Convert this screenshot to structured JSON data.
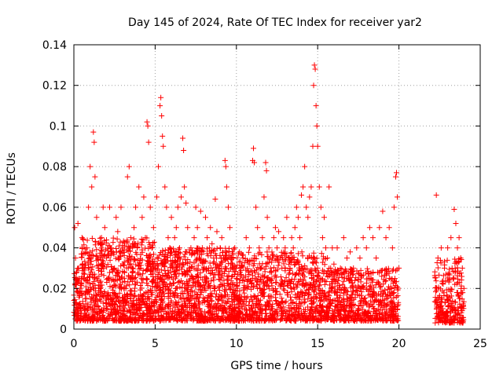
{
  "chart_data": {
    "type": "scatter",
    "title": "Day 145 of 2024, Rate Of TEC Index for receiver yar2",
    "xlabel": "GPS time / hours",
    "ylabel": "ROTI / TECUs",
    "xlim": [
      0,
      25
    ],
    "ylim": [
      0,
      0.14
    ],
    "xticks": [
      0,
      5,
      10,
      15,
      20,
      25
    ],
    "yticks": [
      0,
      0.02,
      0.04,
      0.06,
      0.08,
      0.1,
      0.12,
      0.14
    ],
    "xtick_labels": [
      "0",
      "5",
      "10",
      "15",
      "20",
      "25"
    ],
    "ytick_labels": [
      "0",
      "0.02",
      "0.04",
      "0.06",
      "0.08",
      "0.1",
      "0.12",
      "0.14"
    ],
    "grid": true,
    "marker": "+",
    "color": "#ff0000",
    "series": [
      {
        "name": "",
        "points": [
          [
            0.05,
            0.05
          ],
          [
            0.1,
            0.035
          ],
          [
            0.15,
            0.02
          ],
          [
            0.2,
            0.01
          ],
          [
            0.25,
            0.052
          ],
          [
            0.3,
            0.03
          ],
          [
            0.5,
            0.045
          ],
          [
            0.6,
            0.025
          ],
          [
            0.7,
            0.015
          ],
          [
            0.8,
            0.04
          ],
          [
            0.9,
            0.06
          ],
          [
            1.0,
            0.08
          ],
          [
            1.1,
            0.07
          ],
          [
            1.2,
            0.097
          ],
          [
            1.25,
            0.092
          ],
          [
            1.3,
            0.075
          ],
          [
            1.4,
            0.055
          ],
          [
            1.5,
            0.03
          ],
          [
            1.6,
            0.02
          ],
          [
            1.7,
            0.045
          ],
          [
            1.8,
            0.06
          ],
          [
            1.9,
            0.05
          ],
          [
            2.0,
            0.035
          ],
          [
            2.1,
            0.025
          ],
          [
            2.2,
            0.06
          ],
          [
            2.3,
            0.04
          ],
          [
            2.4,
            0.018
          ],
          [
            2.5,
            0.03
          ],
          [
            2.6,
            0.055
          ],
          [
            2.7,
            0.048
          ],
          [
            2.8,
            0.035
          ],
          [
            2.9,
            0.06
          ],
          [
            3.0,
            0.04
          ],
          [
            3.1,
            0.025
          ],
          [
            3.2,
            0.02
          ],
          [
            3.3,
            0.075
          ],
          [
            3.4,
            0.08
          ],
          [
            3.5,
            0.045
          ],
          [
            3.6,
            0.03
          ],
          [
            3.7,
            0.05
          ],
          [
            3.8,
            0.06
          ],
          [
            3.9,
            0.04
          ],
          [
            4.0,
            0.07
          ],
          [
            4.1,
            0.03
          ],
          [
            4.2,
            0.055
          ],
          [
            4.3,
            0.065
          ],
          [
            4.4,
            0.045
          ],
          [
            4.5,
            0.102
          ],
          [
            4.55,
            0.1
          ],
          [
            4.6,
            0.092
          ],
          [
            4.7,
            0.06
          ],
          [
            4.8,
            0.04
          ],
          [
            4.9,
            0.05
          ],
          [
            5.0,
            0.03
          ],
          [
            5.1,
            0.065
          ],
          [
            5.2,
            0.08
          ],
          [
            5.3,
            0.11
          ],
          [
            5.35,
            0.114
          ],
          [
            5.4,
            0.105
          ],
          [
            5.45,
            0.095
          ],
          [
            5.5,
            0.09
          ],
          [
            5.6,
            0.07
          ],
          [
            5.7,
            0.06
          ],
          [
            5.8,
            0.045
          ],
          [
            5.9,
            0.04
          ],
          [
            6.0,
            0.055
          ],
          [
            6.1,
            0.03
          ],
          [
            6.2,
            0.045
          ],
          [
            6.3,
            0.05
          ],
          [
            6.4,
            0.06
          ],
          [
            6.5,
            0.04
          ],
          [
            6.6,
            0.065
          ],
          [
            6.7,
            0.094
          ],
          [
            6.75,
            0.088
          ],
          [
            6.8,
            0.07
          ],
          [
            6.9,
            0.062
          ],
          [
            7.0,
            0.05
          ],
          [
            7.1,
            0.03
          ],
          [
            7.2,
            0.04
          ],
          [
            7.3,
            0.025
          ],
          [
            7.4,
            0.045
          ],
          [
            7.5,
            0.06
          ],
          [
            7.6,
            0.05
          ],
          [
            7.7,
            0.035
          ],
          [
            7.8,
            0.058
          ],
          [
            7.9,
            0.04
          ],
          [
            8.0,
            0.03
          ],
          [
            8.1,
            0.055
          ],
          [
            8.2,
            0.045
          ],
          [
            8.3,
            0.03
          ],
          [
            8.4,
            0.05
          ],
          [
            8.5,
            0.042
          ],
          [
            8.6,
            0.035
          ],
          [
            8.7,
            0.064
          ],
          [
            8.8,
            0.048
          ],
          [
            8.9,
            0.03
          ],
          [
            9.0,
            0.04
          ],
          [
            9.1,
            0.045
          ],
          [
            9.2,
            0.035
          ],
          [
            9.3,
            0.083
          ],
          [
            9.35,
            0.08
          ],
          [
            9.4,
            0.07
          ],
          [
            9.5,
            0.06
          ],
          [
            9.6,
            0.05
          ],
          [
            9.7,
            0.035
          ],
          [
            9.8,
            0.03
          ],
          [
            9.9,
            0.04
          ],
          [
            10.0,
            0.025
          ],
          [
            10.2,
            0.03
          ],
          [
            10.4,
            0.035
          ],
          [
            10.6,
            0.045
          ],
          [
            10.8,
            0.04
          ],
          [
            11.0,
            0.083
          ],
          [
            11.05,
            0.089
          ],
          [
            11.1,
            0.082
          ],
          [
            11.2,
            0.06
          ],
          [
            11.3,
            0.05
          ],
          [
            11.4,
            0.04
          ],
          [
            11.5,
            0.03
          ],
          [
            11.6,
            0.045
          ],
          [
            11.7,
            0.065
          ],
          [
            11.8,
            0.082
          ],
          [
            11.85,
            0.078
          ],
          [
            11.9,
            0.055
          ],
          [
            12.0,
            0.04
          ],
          [
            12.1,
            0.03
          ],
          [
            12.2,
            0.035
          ],
          [
            12.3,
            0.045
          ],
          [
            12.4,
            0.05
          ],
          [
            12.5,
            0.04
          ],
          [
            12.6,
            0.048
          ],
          [
            12.7,
            0.035
          ],
          [
            12.8,
            0.03
          ],
          [
            12.9,
            0.045
          ],
          [
            13.0,
            0.04
          ],
          [
            13.1,
            0.055
          ],
          [
            13.2,
            0.035
          ],
          [
            13.3,
            0.03
          ],
          [
            13.4,
            0.045
          ],
          [
            13.5,
            0.04
          ],
          [
            13.6,
            0.05
          ],
          [
            13.7,
            0.06
          ],
          [
            13.8,
            0.055
          ],
          [
            13.9,
            0.045
          ],
          [
            14.0,
            0.066
          ],
          [
            14.1,
            0.07
          ],
          [
            14.2,
            0.08
          ],
          [
            14.3,
            0.06
          ],
          [
            14.4,
            0.055
          ],
          [
            14.5,
            0.065
          ],
          [
            14.6,
            0.07
          ],
          [
            14.7,
            0.09
          ],
          [
            14.75,
            0.12
          ],
          [
            14.8,
            0.13
          ],
          [
            14.85,
            0.128
          ],
          [
            14.9,
            0.11
          ],
          [
            14.95,
            0.1
          ],
          [
            15.0,
            0.09
          ],
          [
            15.1,
            0.07
          ],
          [
            15.2,
            0.06
          ],
          [
            15.3,
            0.045
          ],
          [
            15.4,
            0.055
          ],
          [
            15.5,
            0.04
          ],
          [
            15.6,
            0.035
          ],
          [
            15.7,
            0.07
          ],
          [
            15.8,
            0.03
          ],
          [
            15.9,
            0.04
          ],
          [
            16.0,
            0.032
          ],
          [
            16.2,
            0.04
          ],
          [
            16.4,
            0.03
          ],
          [
            16.6,
            0.045
          ],
          [
            16.8,
            0.035
          ],
          [
            17.0,
            0.038
          ],
          [
            17.2,
            0.03
          ],
          [
            17.4,
            0.04
          ],
          [
            17.6,
            0.035
          ],
          [
            17.8,
            0.045
          ],
          [
            18.0,
            0.04
          ],
          [
            18.2,
            0.05
          ],
          [
            18.4,
            0.045
          ],
          [
            18.6,
            0.035
          ],
          [
            18.8,
            0.05
          ],
          [
            19.0,
            0.058
          ],
          [
            19.2,
            0.045
          ],
          [
            19.4,
            0.05
          ],
          [
            19.6,
            0.04
          ],
          [
            19.7,
            0.06
          ],
          [
            19.8,
            0.075
          ],
          [
            19.85,
            0.077
          ],
          [
            19.9,
            0.065
          ],
          [
            20.0,
            0.03
          ],
          [
            22.3,
            0.066
          ],
          [
            22.4,
            0.035
          ],
          [
            22.6,
            0.04
          ],
          [
            22.8,
            0.03
          ],
          [
            23.0,
            0.04
          ],
          [
            23.2,
            0.045
          ],
          [
            23.4,
            0.059
          ],
          [
            23.5,
            0.052
          ],
          [
            23.6,
            0.04
          ],
          [
            23.7,
            0.045
          ],
          [
            23.8,
            0.035
          ],
          [
            23.9,
            0.03
          ],
          [
            24.0,
            0.02
          ]
        ],
        "dense_band": [
          {
            "x0": 0.0,
            "x1": 0.35,
            "ymin": 0.004,
            "ymax": 0.03,
            "n": 60
          },
          {
            "x0": 0.35,
            "x1": 5.0,
            "ymin": 0.004,
            "ymax": 0.045,
            "n": 900
          },
          {
            "x0": 5.0,
            "x1": 10.0,
            "ymin": 0.004,
            "ymax": 0.04,
            "n": 900
          },
          {
            "x0": 10.0,
            "x1": 15.5,
            "ymin": 0.004,
            "ymax": 0.038,
            "n": 850
          },
          {
            "x0": 15.5,
            "x1": 20.0,
            "ymin": 0.004,
            "ymax": 0.03,
            "n": 650
          },
          {
            "x0": 22.2,
            "x1": 24.0,
            "ymin": 0.003,
            "ymax": 0.035,
            "n": 260
          }
        ]
      }
    ]
  }
}
